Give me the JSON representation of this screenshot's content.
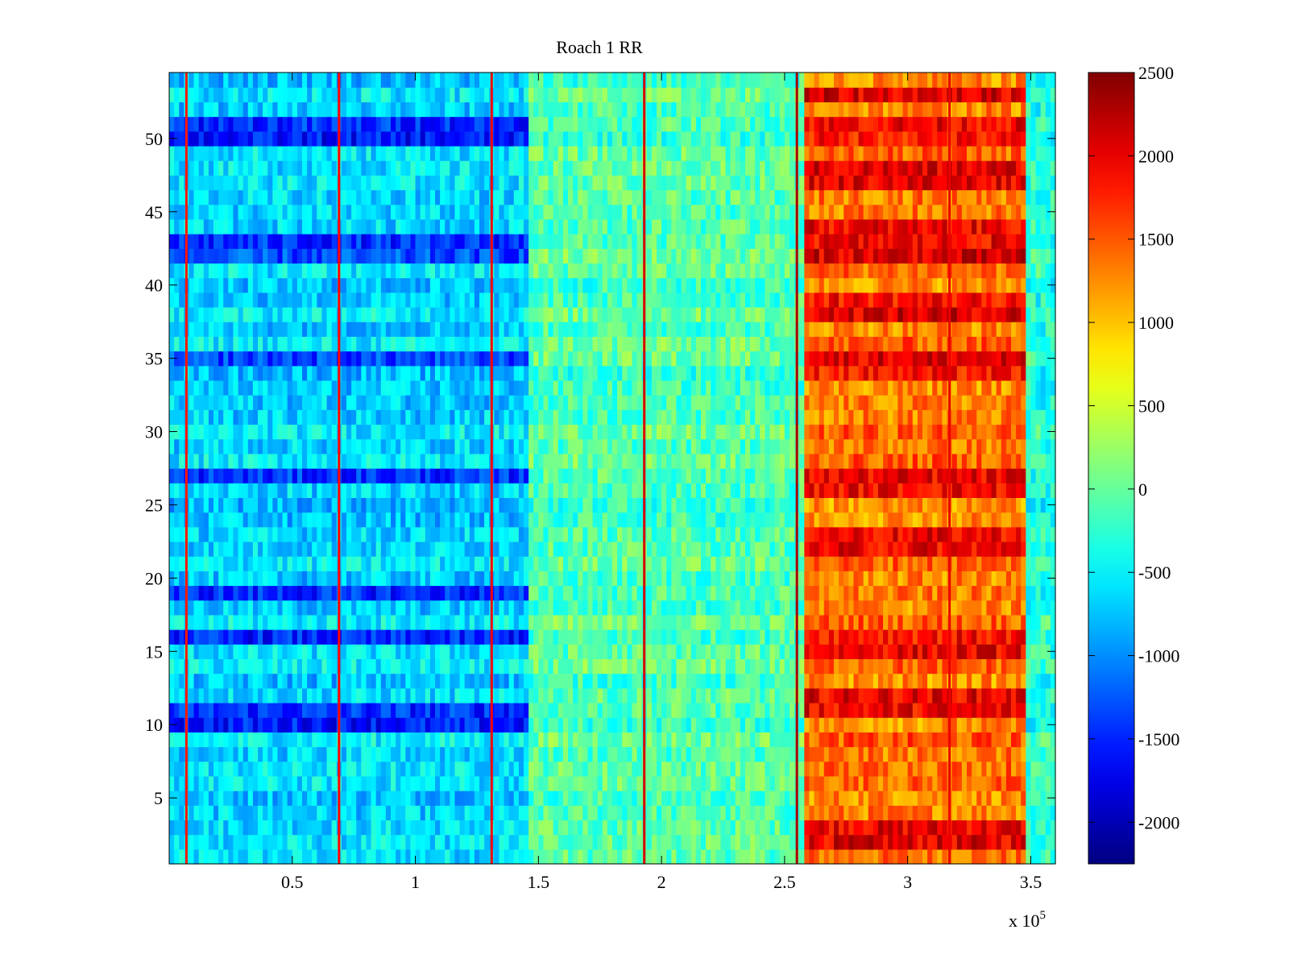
{
  "chart_data": {
    "type": "heatmap",
    "title": "Roach 1 RR",
    "xlabel": "",
    "ylabel": "",
    "x_multiplier": "x 10",
    "x_multiplier_exponent": "5",
    "xlim": [
      0,
      360000
    ],
    "ylim": [
      0.5,
      54.5
    ],
    "xticks": [
      {
        "value": 50000,
        "label": "0.5"
      },
      {
        "value": 100000,
        "label": "1"
      },
      {
        "value": 150000,
        "label": "1.5"
      },
      {
        "value": 200000,
        "label": "2"
      },
      {
        "value": 250000,
        "label": "2.5"
      },
      {
        "value": 300000,
        "label": "3"
      },
      {
        "value": 350000,
        "label": "3.5"
      }
    ],
    "yticks": [
      {
        "value": 5,
        "label": "5"
      },
      {
        "value": 10,
        "label": "10"
      },
      {
        "value": 15,
        "label": "15"
      },
      {
        "value": 20,
        "label": "20"
      },
      {
        "value": 25,
        "label": "25"
      },
      {
        "value": 30,
        "label": "30"
      },
      {
        "value": 35,
        "label": "35"
      },
      {
        "value": 40,
        "label": "40"
      },
      {
        "value": 45,
        "label": "45"
      },
      {
        "value": 50,
        "label": "50"
      }
    ],
    "colorbar": {
      "colormap": "jet",
      "clim": [
        -2250,
        2500
      ],
      "ticks": [
        {
          "value": 2500,
          "label": "2500"
        },
        {
          "value": 2000,
          "label": "2000"
        },
        {
          "value": 1500,
          "label": "1500"
        },
        {
          "value": 1000,
          "label": "1000"
        },
        {
          "value": 500,
          "label": "500"
        },
        {
          "value": 0,
          "label": "0"
        },
        {
          "value": -500,
          "label": "-500"
        },
        {
          "value": -1000,
          "label": "-1000"
        },
        {
          "value": -1500,
          "label": "-1500"
        },
        {
          "value": -2000,
          "label": "-2000"
        }
      ]
    },
    "rows": 54,
    "segments": [
      {
        "x_start": 0,
        "x_end": 145000,
        "mean": -650
      },
      {
        "x_start": 145000,
        "x_end": 258000,
        "mean": -100
      },
      {
        "x_start": 258000,
        "x_end": 348000,
        "mean": 1350
      },
      {
        "x_start": 348000,
        "x_end": 360000,
        "mean": -300
      }
    ],
    "dark_rows": [
      10,
      11,
      16,
      19,
      27,
      35,
      42,
      43,
      50,
      51
    ],
    "hot_rows": [
      2,
      3,
      11,
      12,
      15,
      16,
      22,
      23,
      26,
      27,
      34,
      35,
      38,
      39,
      42,
      43,
      44,
      47,
      48,
      50,
      51,
      53
    ],
    "vertical_lines": [
      {
        "x": 7000,
        "value": 1800
      },
      {
        "x": 69000,
        "value": 1900
      },
      {
        "x": 131000,
        "value": 1900
      },
      {
        "x": 193000,
        "value": 2100
      },
      {
        "x": 255000,
        "value": 2300
      },
      {
        "x": 317000,
        "value": 2000
      }
    ]
  }
}
